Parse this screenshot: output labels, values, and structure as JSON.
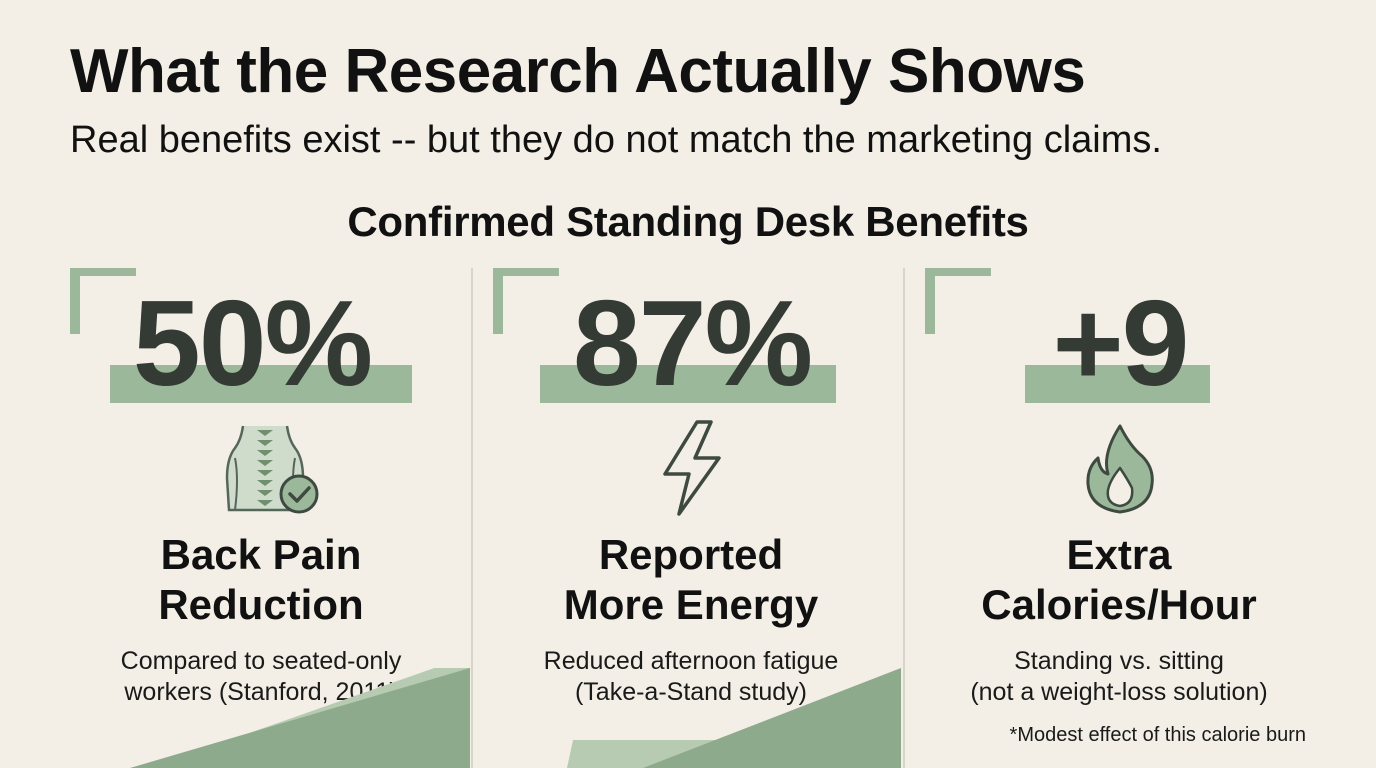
{
  "header": {
    "title": "What the Research Actually Shows",
    "subtitle": "Real benefits exist -- but they do not match the marketing claims."
  },
  "section": {
    "heading": "Confirmed Standing Desk Benefits"
  },
  "benefits": [
    {
      "stat": "50%",
      "icon": "spine-check-icon",
      "label_line1": "Back Pain",
      "label_line2": "Reduction",
      "desc_line1": "Compared to seated-only",
      "desc_line2": "workers (Stanford, 2011)"
    },
    {
      "stat": "87%",
      "icon": "lightning-bolt-icon",
      "label_line1": "Reported",
      "label_line2": "More Energy",
      "desc_line1": "Reduced afternoon fatigue",
      "desc_line2": "(Take-a-Stand study)"
    },
    {
      "stat": "+9",
      "icon": "flame-icon",
      "label_line1": "Extra",
      "label_line2": "Calories/Hour",
      "desc_line1": "Standing vs. sitting",
      "desc_line2": "(not a weight-loss solution)"
    }
  ],
  "footnote": "*Modest effect of this calorie burn",
  "colors": {
    "background": "#f3efe6",
    "accent": "#9cb89b",
    "accent_dark": "#6f8f6f",
    "stat_text": "#343b35"
  }
}
